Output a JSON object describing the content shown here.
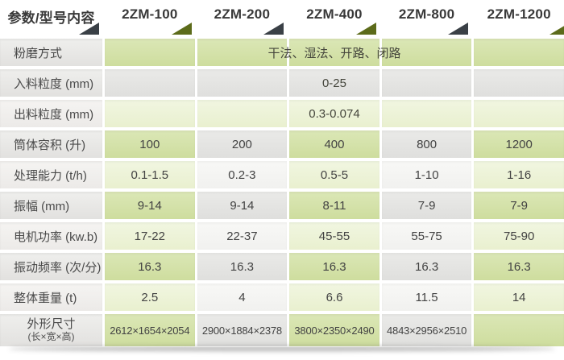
{
  "colors": {
    "green_cell_dark": "#d3e1a6",
    "green_cell_light": "#edf3d6",
    "gray_cell_dark": "#e3e3e1",
    "gray_cell_light": "#f5f5f3",
    "label_cell": "#e9e8e6",
    "header_text": "#393939",
    "body_text": "#434343",
    "triangle_green": "#5c6b1a",
    "triangle_dark": "#3a4046"
  },
  "table": {
    "header": {
      "param_label": "参数/型号内容",
      "models": [
        {
          "key": "2zm-100",
          "label": "2ZM-100"
        },
        {
          "key": "2zm-200",
          "label": "2ZM-200"
        },
        {
          "key": "2zm-400",
          "label": "2ZM-400"
        },
        {
          "key": "2zm-800",
          "label": "2ZM-800"
        },
        {
          "key": "2zm-1200",
          "label": "2ZM-1200"
        }
      ]
    },
    "rows": [
      {
        "key": "grinding-method",
        "label": "粉磨方式",
        "span": "干法、湿法、开路、闭路",
        "family": "green",
        "shade": "dark"
      },
      {
        "key": "feed-size",
        "label": "入料粒度 (mm)",
        "span": "0-25",
        "family": "gray",
        "shade": "dark"
      },
      {
        "key": "discharge-size",
        "label": "出料粒度 (mm)",
        "span": "0.3-0.074",
        "family": "green",
        "shade": "light"
      },
      {
        "key": "cylinder-volume",
        "label": "筒体容积 (升)",
        "values": [
          "100",
          "200",
          "400",
          "800",
          "1200"
        ],
        "shade": "dark"
      },
      {
        "key": "capacity",
        "label": "处理能力 (t/h)",
        "values": [
          "0.1-1.5",
          "0.2-3",
          "0.5-5",
          "1-10",
          "1-16"
        ],
        "shade": "light"
      },
      {
        "key": "amplitude",
        "label": "振幅 (mm)",
        "values": [
          "9-14",
          "9-14",
          "8-11",
          "7-9",
          "7-9"
        ],
        "shade": "dark"
      },
      {
        "key": "motor-power",
        "label": "电机功率 (kw.b)",
        "values": [
          "17-22",
          "22-37",
          "45-55",
          "55-75",
          "75-90"
        ],
        "shade": "light"
      },
      {
        "key": "vibration-frequency",
        "label": "振动频率 (次/分)",
        "values": [
          "16.3",
          "16.3",
          "16.3",
          "16.3",
          "16.3"
        ],
        "shade": "dark"
      },
      {
        "key": "total-weight",
        "label": "整体重量 (t)",
        "values": [
          "2.5",
          "4",
          "6.6",
          "11.5",
          "14"
        ],
        "shade": "light"
      },
      {
        "key": "dimensions",
        "label": "外形尺寸",
        "sublabel": "(长×宽×高)",
        "compact": true,
        "values": [
          "2612×1654×2054",
          "2900×1884×2378",
          "3800×2350×2490",
          "4843×2956×2510",
          ""
        ],
        "shade": "dark"
      }
    ]
  }
}
